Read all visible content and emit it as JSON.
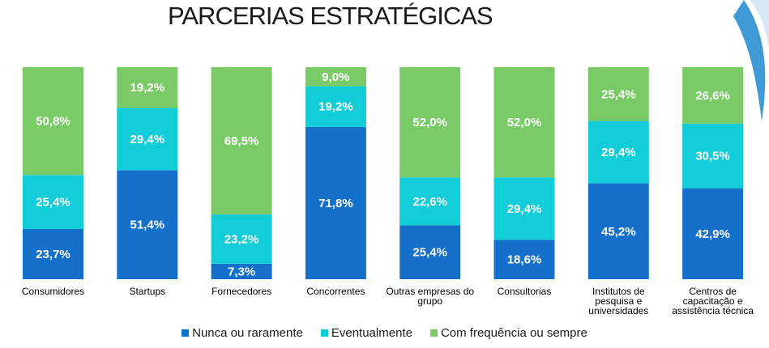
{
  "title": "PARCERIAS ESTRATÉGICAS",
  "colors": {
    "nunca": "#1470C8",
    "eventualmente": "#12CCD8",
    "frequencia": "#7ACB68",
    "decoration": "#2A8FD0"
  },
  "legend": [
    {
      "label": "Nunca ou raramente",
      "color": "#1470C8"
    },
    {
      "label": "Eventualmente",
      "color": "#12CCD8"
    },
    {
      "label": "Com frequência ou sempre",
      "color": "#7ACB68"
    }
  ],
  "chart_data": {
    "type": "bar",
    "stacked": true,
    "normalized": true,
    "title": "PARCERIAS ESTRATÉGICAS",
    "categories": [
      [
        "Consumidores"
      ],
      [
        "Startups"
      ],
      [
        "Fornecedores"
      ],
      [
        "Concorrentes"
      ],
      [
        "Outras empresas do",
        "grupo"
      ],
      [
        "Consultorias"
      ],
      [
        "Institutos de",
        "pesquisa e",
        "universidades"
      ],
      [
        "Centros de",
        "capacitação e",
        "assistência técnica"
      ]
    ],
    "series": [
      {
        "name": "Nunca ou raramente",
        "color": "#1470C8",
        "values": [
          23.7,
          51.4,
          7.3,
          71.8,
          25.4,
          18.6,
          45.2,
          42.9
        ],
        "labels": [
          "23,7%",
          "51,4%",
          "7,3%",
          "71,8%",
          "25,4%",
          "18,6%",
          "45,2%",
          "42,9%"
        ]
      },
      {
        "name": "Eventualmente",
        "color": "#12CCD8",
        "values": [
          25.4,
          29.4,
          23.2,
          19.2,
          22.6,
          29.4,
          29.4,
          30.5
        ],
        "labels": [
          "25,4%",
          "29,4%",
          "23,2%",
          "19,2%",
          "22,6%",
          "29,4%",
          "29,4%",
          "30,5%"
        ]
      },
      {
        "name": "Com frequência ou sempre",
        "color": "#7ACB68",
        "values": [
          50.8,
          19.2,
          69.5,
          9.0,
          52.0,
          52.0,
          25.4,
          26.6
        ],
        "labels": [
          "50,8%",
          "19,2%",
          "69,5%",
          "9,0%",
          "52,0%",
          "52,0%",
          "25,4%",
          "26,6%"
        ]
      }
    ],
    "ylim": [
      0,
      100
    ],
    "grid": false,
    "legend_position": "bottom"
  }
}
